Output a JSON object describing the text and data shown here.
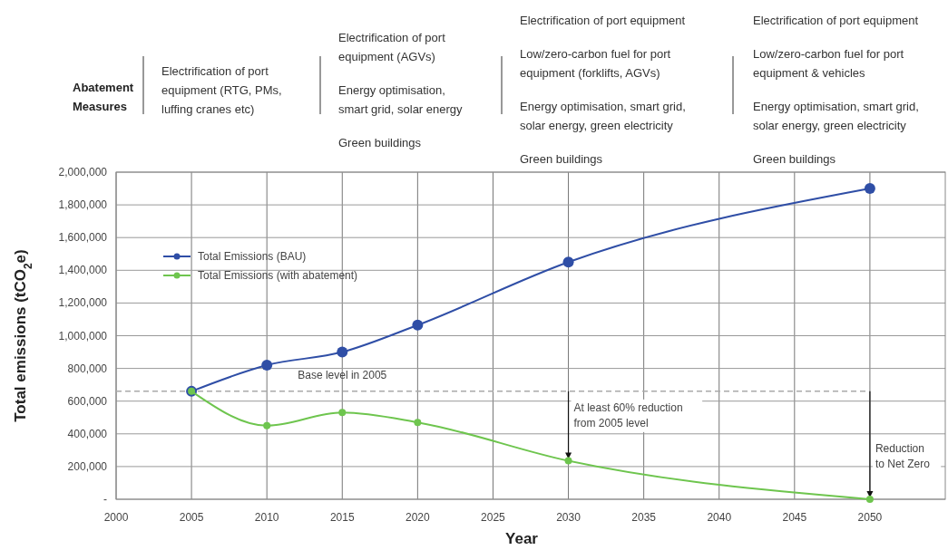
{
  "chart_data": {
    "type": "line",
    "xlabel": "Year",
    "ylabel": "Total emissions (tCO$_{2}$e)",
    "x": [
      2005,
      2010,
      2015,
      2020,
      2030,
      2050
    ],
    "series": [
      {
        "name": "Total Emissions (BAU)",
        "color": "#2f4ea6",
        "values": [
          660000,
          820000,
          900000,
          1065000,
          1450000,
          1900000
        ]
      },
      {
        "name": "Total Emissions (with abatement)",
        "color": "#6ec54e",
        "values": [
          660000,
          450000,
          530000,
          470000,
          235000,
          0
        ]
      }
    ],
    "xlim": [
      2000,
      2055
    ],
    "xticks": [
      2000,
      2005,
      2010,
      2015,
      2020,
      2025,
      2030,
      2035,
      2040,
      2045,
      2050
    ],
    "ylim": [
      0,
      2000000
    ],
    "yticks": [
      {
        "value": 0,
        "label": "-"
      },
      {
        "value": 200000,
        "label": "200,000"
      },
      {
        "value": 400000,
        "label": "400,000"
      },
      {
        "value": 600000,
        "label": "600,000"
      },
      {
        "value": 800000,
        "label": "800,000"
      },
      {
        "value": 1000000,
        "label": "1,000,000"
      },
      {
        "value": 1200000,
        "label": "1,200,000"
      },
      {
        "value": 1400000,
        "label": "1,400,000"
      },
      {
        "value": 1600000,
        "label": "1,600,000"
      },
      {
        "value": 1800000,
        "label": "1,800,000"
      },
      {
        "value": 2000000,
        "label": "2,000,000"
      }
    ],
    "grid": true,
    "legend": "top left",
    "marker": "circle",
    "line_style": "solid",
    "ref_lines": [
      {
        "axis": "y",
        "value": 660000,
        "label": "Base level in 2005",
        "color": "#aaaaaa",
        "line_style": "dashed"
      }
    ],
    "annotations": [
      "Abatement\nMeasures",
      "Electrification of port\nequipment (RTG, PMs,\nluffing cranes etc)",
      "Electrification of port\nequipment (AGVs)\n\nEnergy optimisation,\nsmart grid, solar energy\n\nGreen buildings",
      "Electrification of port equipment\n\nLow/zero-carbon fuel for port\nequipment (forklifts, AGVs)\n\nEnergy optimisation, smart grid,\nsolar energy, green electricity\n\nGreen buildings",
      "Electrification of port equipment\n\nLow/zero-carbon fuel for port\nequipment & vehicles\n\nEnergy optimisation, smart grid,\nsolar energy, green electricity\n\nGreen buildings",
      {
        "text": "At least 60% reduction\nfrom 2005 level",
        "x": 2030,
        "y": 235000
      },
      {
        "text": "Reduction\nto Net Zero",
        "x": 2050,
        "y": 0
      }
    ]
  }
}
